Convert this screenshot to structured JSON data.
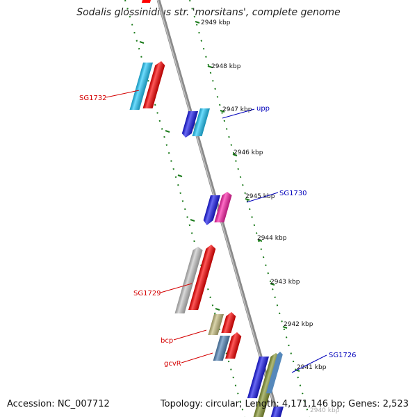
{
  "title": "Sodalis glossinidius str. 'morsitans', complete genome",
  "footer": {
    "accession": "Accession: NC_007712",
    "summary": "Topology: circular; Length: 4,171,146 bp; Genes: 2,523"
  },
  "ticks": [
    {
      "label": "2949 kbp"
    },
    {
      "label": "2948 kbp"
    },
    {
      "label": "2947 kbp"
    },
    {
      "label": "2946 kbp"
    },
    {
      "label": "2945 kbp"
    },
    {
      "label": "2944 kbp"
    },
    {
      "label": "2943 kbp"
    },
    {
      "label": "2942 kbp"
    },
    {
      "label": "2941 kbp"
    },
    {
      "label": "2940 kbp"
    }
  ],
  "gene_labels": {
    "sg1732": "SG1732",
    "upp": "upp",
    "sg1730": "SG1730",
    "sg1729": "SG1729",
    "bcp": "bcp",
    "gcvr": "gcvR",
    "sg1726": "SG1726"
  },
  "colors": {
    "backbone": "#8a8a8a",
    "track_dots": "#1a7a1a",
    "tick_text": "#111111",
    "label_left": "#d40000",
    "label_right": "#0000bb",
    "red": "#ff0000",
    "light_blue": "#22ccff",
    "blue": "#1a1aee",
    "magenta": "#ff22aa",
    "silver": "#c8c8c8",
    "khaki": "#c8c080",
    "steel_blue": "#5588bb",
    "olive": "#889933"
  }
}
